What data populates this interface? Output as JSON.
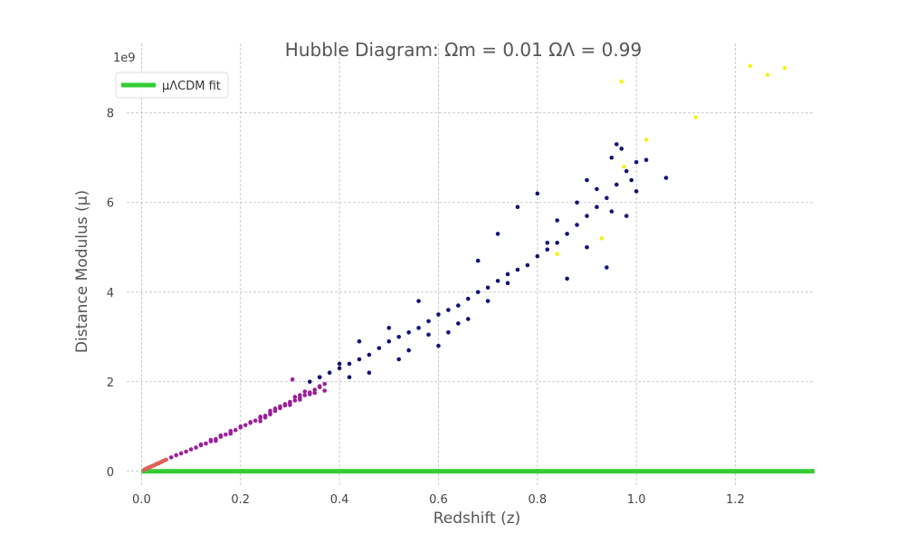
{
  "chart_data": {
    "type": "scatter",
    "title": "Hubble Diagram: Ωm = 0.01 ΩΛ = 0.99",
    "xlabel": "Redshift (z)",
    "ylabel": "Distance Modulus (μ)",
    "y_multiplier": "1e9",
    "xlim": [
      -0.03,
      1.36
    ],
    "ylim": [
      -0.55,
      9.55
    ],
    "xticks": [
      0.0,
      0.2,
      0.4,
      0.6,
      0.8,
      1.0,
      1.2
    ],
    "xtick_labels": [
      "0.0",
      "0.2",
      "0.4",
      "0.6",
      "0.8",
      "1.0",
      "1.2"
    ],
    "yticks": [
      0,
      2,
      4,
      6,
      8
    ],
    "ytick_labels": [
      "0",
      "2",
      "4",
      "6",
      "8"
    ],
    "grid": true,
    "legend": {
      "position": "top-left",
      "entries": [
        "μΛCDM fit"
      ]
    },
    "fit_line": {
      "name": "μΛCDM fit",
      "color": "#33cc33",
      "x": [
        0.0,
        1.36
      ],
      "y": [
        0.0,
        0.0
      ]
    },
    "colors": {
      "low_z": "#e0605a",
      "mid_z": "#9c1f9c",
      "high_z": "#12127a",
      "outlier": "#f5f01a"
    },
    "series": [
      {
        "color_group": "low_z",
        "points": [
          [
            0.005,
            0.03
          ],
          [
            0.008,
            0.05
          ],
          [
            0.01,
            0.06
          ],
          [
            0.012,
            0.07
          ],
          [
            0.015,
            0.09
          ],
          [
            0.018,
            0.1
          ],
          [
            0.02,
            0.11
          ],
          [
            0.022,
            0.12
          ],
          [
            0.025,
            0.13
          ],
          [
            0.028,
            0.15
          ],
          [
            0.03,
            0.16
          ],
          [
            0.032,
            0.17
          ],
          [
            0.035,
            0.18
          ],
          [
            0.038,
            0.2
          ],
          [
            0.04,
            0.21
          ],
          [
            0.042,
            0.22
          ],
          [
            0.045,
            0.24
          ],
          [
            0.048,
            0.25
          ],
          [
            0.05,
            0.26
          ]
        ]
      },
      {
        "color_group": "mid_z",
        "points": [
          [
            0.06,
            0.31
          ],
          [
            0.07,
            0.36
          ],
          [
            0.08,
            0.4
          ],
          [
            0.09,
            0.44
          ],
          [
            0.1,
            0.49
          ],
          [
            0.11,
            0.53
          ],
          [
            0.12,
            0.58
          ],
          [
            0.13,
            0.62
          ],
          [
            0.14,
            0.67
          ],
          [
            0.15,
            0.72
          ],
          [
            0.16,
            0.77
          ],
          [
            0.17,
            0.82
          ],
          [
            0.18,
            0.87
          ],
          [
            0.19,
            0.92
          ],
          [
            0.2,
            0.98
          ],
          [
            0.21,
            1.03
          ],
          [
            0.22,
            1.08
          ],
          [
            0.23,
            1.13
          ],
          [
            0.24,
            1.19
          ],
          [
            0.25,
            1.24
          ],
          [
            0.26,
            1.3
          ],
          [
            0.27,
            1.35
          ],
          [
            0.28,
            1.41
          ],
          [
            0.29,
            1.47
          ],
          [
            0.3,
            1.52
          ],
          [
            0.31,
            1.58
          ],
          [
            0.32,
            1.64
          ],
          [
            0.33,
            1.7
          ],
          [
            0.34,
            1.76
          ],
          [
            0.35,
            1.82
          ],
          [
            0.36,
            1.88
          ],
          [
            0.37,
            1.95
          ],
          [
            0.15,
            0.68
          ],
          [
            0.18,
            0.84
          ],
          [
            0.2,
            1.0
          ],
          [
            0.22,
            1.1
          ],
          [
            0.24,
            1.22
          ],
          [
            0.26,
            1.27
          ],
          [
            0.28,
            1.45
          ],
          [
            0.3,
            1.55
          ],
          [
            0.305,
            2.05
          ],
          [
            0.32,
            1.6
          ],
          [
            0.34,
            1.72
          ],
          [
            0.36,
            1.9
          ],
          [
            0.36,
            2.1
          ],
          [
            0.37,
            1.8
          ],
          [
            0.25,
            1.2
          ],
          [
            0.27,
            1.4
          ],
          [
            0.29,
            1.5
          ],
          [
            0.31,
            1.66
          ],
          [
            0.33,
            1.78
          ],
          [
            0.35,
            1.75
          ],
          [
            0.12,
            0.6
          ],
          [
            0.14,
            0.7
          ],
          [
            0.16,
            0.8
          ],
          [
            0.18,
            0.9
          ],
          [
            0.24,
            1.12
          ],
          [
            0.26,
            1.35
          ],
          [
            0.3,
            1.48
          ],
          [
            0.32,
            1.7
          ]
        ]
      },
      {
        "color_group": "high_z",
        "points": [
          [
            0.34,
            2.0
          ],
          [
            0.36,
            2.1
          ],
          [
            0.38,
            2.2
          ],
          [
            0.4,
            2.3
          ],
          [
            0.42,
            2.4
          ],
          [
            0.44,
            2.5
          ],
          [
            0.46,
            2.6
          ],
          [
            0.48,
            2.75
          ],
          [
            0.5,
            2.9
          ],
          [
            0.52,
            3.0
          ],
          [
            0.54,
            3.1
          ],
          [
            0.56,
            3.2
          ],
          [
            0.58,
            3.35
          ],
          [
            0.6,
            3.5
          ],
          [
            0.62,
            3.6
          ],
          [
            0.64,
            3.7
          ],
          [
            0.66,
            3.85
          ],
          [
            0.68,
            4.0
          ],
          [
            0.7,
            4.1
          ],
          [
            0.72,
            4.25
          ],
          [
            0.74,
            4.4
          ],
          [
            0.76,
            4.5
          ],
          [
            0.78,
            4.6
          ],
          [
            0.8,
            4.8
          ],
          [
            0.82,
            4.95
          ],
          [
            0.84,
            5.1
          ],
          [
            0.86,
            5.3
          ],
          [
            0.88,
            5.5
          ],
          [
            0.9,
            5.7
          ],
          [
            0.92,
            5.9
          ],
          [
            0.94,
            6.1
          ],
          [
            0.96,
            6.4
          ],
          [
            0.98,
            6.7
          ],
          [
            1.0,
            6.9
          ],
          [
            1.02,
            6.95
          ],
          [
            1.06,
            6.55
          ],
          [
            0.96,
            7.3
          ],
          [
            0.97,
            7.2
          ],
          [
            0.95,
            7.0
          ],
          [
            0.99,
            6.5
          ],
          [
            1.0,
            6.25
          ],
          [
            0.98,
            5.7
          ],
          [
            0.95,
            5.8
          ],
          [
            0.94,
            4.55
          ],
          [
            0.9,
            5.0
          ],
          [
            0.86,
            4.3
          ],
          [
            0.84,
            5.6
          ],
          [
            0.82,
            5.1
          ],
          [
            0.8,
            6.2
          ],
          [
            0.76,
            5.9
          ],
          [
            0.72,
            5.3
          ],
          [
            0.68,
            4.7
          ],
          [
            0.66,
            3.4
          ],
          [
            0.62,
            3.1
          ],
          [
            0.6,
            2.8
          ],
          [
            0.56,
            3.8
          ],
          [
            0.52,
            2.5
          ],
          [
            0.5,
            3.2
          ],
          [
            0.46,
            2.2
          ],
          [
            0.44,
            2.9
          ],
          [
            0.42,
            2.1
          ],
          [
            0.4,
            2.4
          ],
          [
            0.88,
            6.0
          ],
          [
            0.9,
            6.5
          ],
          [
            0.92,
            6.3
          ],
          [
            0.74,
            4.2
          ],
          [
            0.7,
            3.8
          ],
          [
            0.64,
            3.3
          ],
          [
            0.58,
            3.05
          ],
          [
            0.54,
            2.7
          ]
        ]
      },
      {
        "color_group": "outlier",
        "points": [
          [
            0.97,
            8.7
          ],
          [
            1.02,
            7.4
          ],
          [
            1.12,
            7.9
          ],
          [
            1.23,
            9.05
          ],
          [
            1.265,
            8.85
          ],
          [
            1.3,
            9.0
          ],
          [
            0.975,
            6.8
          ],
          [
            0.93,
            5.2
          ],
          [
            0.84,
            4.85
          ]
        ]
      }
    ]
  }
}
